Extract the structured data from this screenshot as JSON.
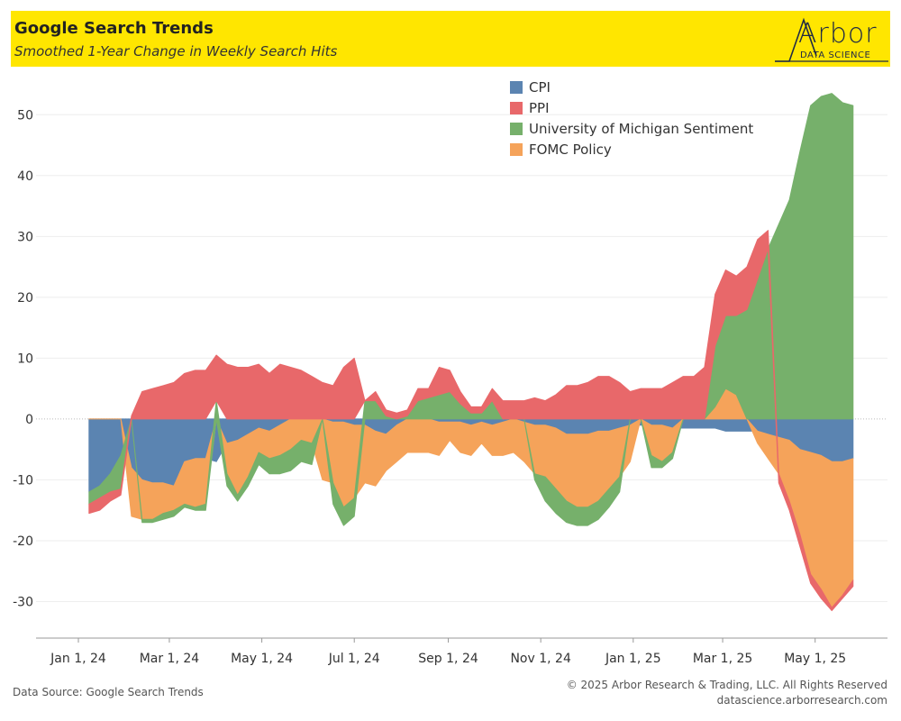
{
  "header": {
    "title": "Google Search Trends",
    "subtitle": "Smoothed 1-Year Change in Weekly Search Hits",
    "logo_word": "Arbor",
    "logo_sub": "DATA SCIENCE",
    "background": "#ffe600"
  },
  "footer": {
    "source": "Data Source: Google Search Trends",
    "copyright": "© 2025 Arbor Research & Trading, LLC. All Rights Reserved",
    "website": "datascience.arborresearch.com"
  },
  "chart_data": {
    "type": "area",
    "title": "Google Search Trends",
    "subtitle": "Smoothed 1-Year Change in Weekly Search Hits",
    "xlabel": "",
    "ylabel": "",
    "ylim": [
      -36,
      57
    ],
    "yticks": [
      50,
      40,
      30,
      20,
      10,
      0,
      -10,
      -20,
      -30
    ],
    "xlim": [
      "2024-01-01",
      "2025-06-10"
    ],
    "xticks": [
      {
        "date": "2024-01-01",
        "label": "Jan 1, 24"
      },
      {
        "date": "2024-03-01",
        "label": "Mar 1, 24"
      },
      {
        "date": "2024-05-01",
        "label": "May 1, 24"
      },
      {
        "date": "2024-07-01",
        "label": "Jul 1, 24"
      },
      {
        "date": "2024-09-01",
        "label": "Sep 1, 24"
      },
      {
        "date": "2024-11-01",
        "label": "Nov 1, 24"
      },
      {
        "date": "2025-01-01",
        "label": "Jan 1, 25"
      },
      {
        "date": "2025-03-01",
        "label": "Mar 1, 25"
      },
      {
        "date": "2025-05-01",
        "label": "May 1, 25"
      }
    ],
    "grid": true,
    "stacked": true,
    "legend_position": "top-right",
    "x": [
      "2024-01-08",
      "2024-01-15",
      "2024-01-22",
      "2024-01-29",
      "2024-02-05",
      "2024-02-12",
      "2024-02-19",
      "2024-02-26",
      "2024-03-04",
      "2024-03-11",
      "2024-03-18",
      "2024-03-25",
      "2024-04-01",
      "2024-04-08",
      "2024-04-15",
      "2024-04-22",
      "2024-04-29",
      "2024-05-06",
      "2024-05-13",
      "2024-05-20",
      "2024-05-27",
      "2024-06-03",
      "2024-06-10",
      "2024-06-17",
      "2024-06-24",
      "2024-07-01",
      "2024-07-08",
      "2024-07-15",
      "2024-07-22",
      "2024-07-29",
      "2024-08-05",
      "2024-08-12",
      "2024-08-19",
      "2024-08-26",
      "2024-09-02",
      "2024-09-09",
      "2024-09-16",
      "2024-09-23",
      "2024-09-30",
      "2024-10-07",
      "2024-10-14",
      "2024-10-21",
      "2024-10-28",
      "2024-11-04",
      "2024-11-11",
      "2024-11-18",
      "2024-11-25",
      "2024-12-02",
      "2024-12-09",
      "2024-12-16",
      "2024-12-23",
      "2024-12-30",
      "2025-01-06",
      "2025-01-13",
      "2025-01-20",
      "2025-01-27",
      "2025-02-03",
      "2025-02-10",
      "2025-02-17",
      "2025-02-24",
      "2025-03-03",
      "2025-03-10",
      "2025-03-17",
      "2025-03-24",
      "2025-03-31",
      "2025-04-07",
      "2025-04-14",
      "2025-04-21",
      "2025-04-28",
      "2025-05-05",
      "2025-05-12",
      "2025-05-19",
      "2025-05-26"
    ],
    "series": [
      {
        "name": "CPI",
        "color": "#5b84b1",
        "values": [
          -12.0,
          -11.0,
          -9.0,
          -6.0,
          -8.0,
          -10.0,
          -10.5,
          -10.5,
          -11.0,
          -7.0,
          -6.5,
          -6.5,
          -7.0,
          -4.0,
          -3.5,
          -2.5,
          -1.5,
          -2.0,
          -1.0,
          0.0,
          0.0,
          0.0,
          0.0,
          -0.5,
          -0.5,
          -1.0,
          -1.0,
          -2.0,
          -2.5,
          -1.0,
          0.0,
          0.0,
          0.0,
          -0.5,
          -0.5,
          -0.5,
          -1.0,
          -0.5,
          -1.0,
          -0.5,
          0.0,
          -0.5,
          -1.0,
          -1.0,
          -1.5,
          -2.5,
          -2.5,
          -2.5,
          -2.0,
          -2.0,
          -1.5,
          -1.0,
          -1.0,
          -1.0,
          -1.0,
          -1.5,
          -1.5,
          -1.5,
          -1.5,
          -1.5,
          -2.0,
          -2.0,
          -2.0,
          -2.0,
          -2.5,
          -3.0,
          -3.5,
          -5.0,
          -5.5,
          -6.0,
          -7.0,
          -7.0,
          -6.5
        ]
      },
      {
        "name": "FOMC Policy",
        "color": "#f5a35a",
        "values": [
          0.0,
          0.0,
          0.0,
          0.0,
          -8.0,
          -6.5,
          -6.0,
          -5.0,
          -4.0,
          -7.0,
          -8.0,
          -7.5,
          0.0,
          -5.0,
          -9.0,
          -7.0,
          -4.0,
          -4.5,
          -5.0,
          -5.0,
          -3.5,
          -4.0,
          -10.0,
          -10.0,
          -14.0,
          -12.0,
          -9.5,
          -9.0,
          -6.0,
          -6.0,
          -5.5,
          -5.5,
          -5.5,
          -5.5,
          -3.0,
          -5.0,
          -5.0,
          -3.5,
          -5.0,
          -5.5,
          -5.5,
          -6.5,
          -8.0,
          -8.5,
          -10.0,
          -11.0,
          -12.0,
          -12.0,
          -11.5,
          -9.5,
          -8.0,
          -6.0,
          0.0,
          -5.0,
          -6.0,
          -4.0,
          0.0,
          0.0,
          0.0,
          2.0,
          5.0,
          4.0,
          0.0,
          -2.0,
          -4.0,
          -6.0,
          -10.0,
          -14.0,
          -20.0,
          -22.0,
          -24.0,
          -22.0,
          -20.0
        ]
      },
      {
        "name": "University of Michigan Sentiment",
        "color": "#76b06b",
        "values": [
          -2.0,
          -2.0,
          -3.0,
          -5.5,
          0.0,
          -0.5,
          -0.5,
          -1.0,
          -1.0,
          -0.5,
          -0.5,
          -1.0,
          3.0,
          -2.0,
          -1.0,
          -1.5,
          -2.0,
          -2.5,
          -3.0,
          -3.5,
          -3.5,
          -3.5,
          0.0,
          -3.5,
          -3.0,
          -3.0,
          3.0,
          3.0,
          0.5,
          0.0,
          0.5,
          3.0,
          3.5,
          4.0,
          4.5,
          2.5,
          1.0,
          1.0,
          3.0,
          0.0,
          0.0,
          0.0,
          -1.0,
          -4.0,
          -4.0,
          -3.5,
          -3.0,
          -3.0,
          -3.0,
          -3.0,
          -2.5,
          0.0,
          0.0,
          -2.0,
          -1.0,
          -1.0,
          0.0,
          0.0,
          0.0,
          10.0,
          12.0,
          13.0,
          18.0,
          23.0,
          28.0,
          32.0,
          36.0,
          44.0,
          51.5,
          53.0,
          53.5,
          52.0,
          51.5
        ]
      },
      {
        "name": "PPI",
        "color": "#e8686a",
        "values": [
          -1.5,
          -2.0,
          -1.5,
          -1.0,
          0.5,
          4.5,
          5.0,
          5.5,
          6.0,
          7.5,
          8.0,
          8.0,
          7.5,
          9.0,
          8.5,
          8.5,
          9.0,
          7.5,
          9.0,
          8.5,
          8.0,
          7.0,
          6.0,
          5.5,
          8.5,
          10.0,
          0.0,
          1.5,
          1.0,
          1.0,
          1.0,
          2.0,
          1.5,
          4.5,
          3.5,
          2.0,
          1.0,
          1.0,
          2.0,
          3.0,
          3.0,
          3.0,
          3.5,
          3.0,
          4.0,
          5.5,
          5.5,
          6.0,
          7.0,
          7.0,
          6.0,
          4.5,
          5.0,
          5.0,
          5.0,
          6.0,
          7.0,
          7.0,
          8.5,
          8.5,
          7.5,
          6.5,
          7.0,
          6.5,
          3.0,
          -1.5,
          -1.5,
          -2.0,
          -1.5,
          -1.5,
          -0.5,
          -0.5,
          -1.0
        ]
      }
    ]
  }
}
